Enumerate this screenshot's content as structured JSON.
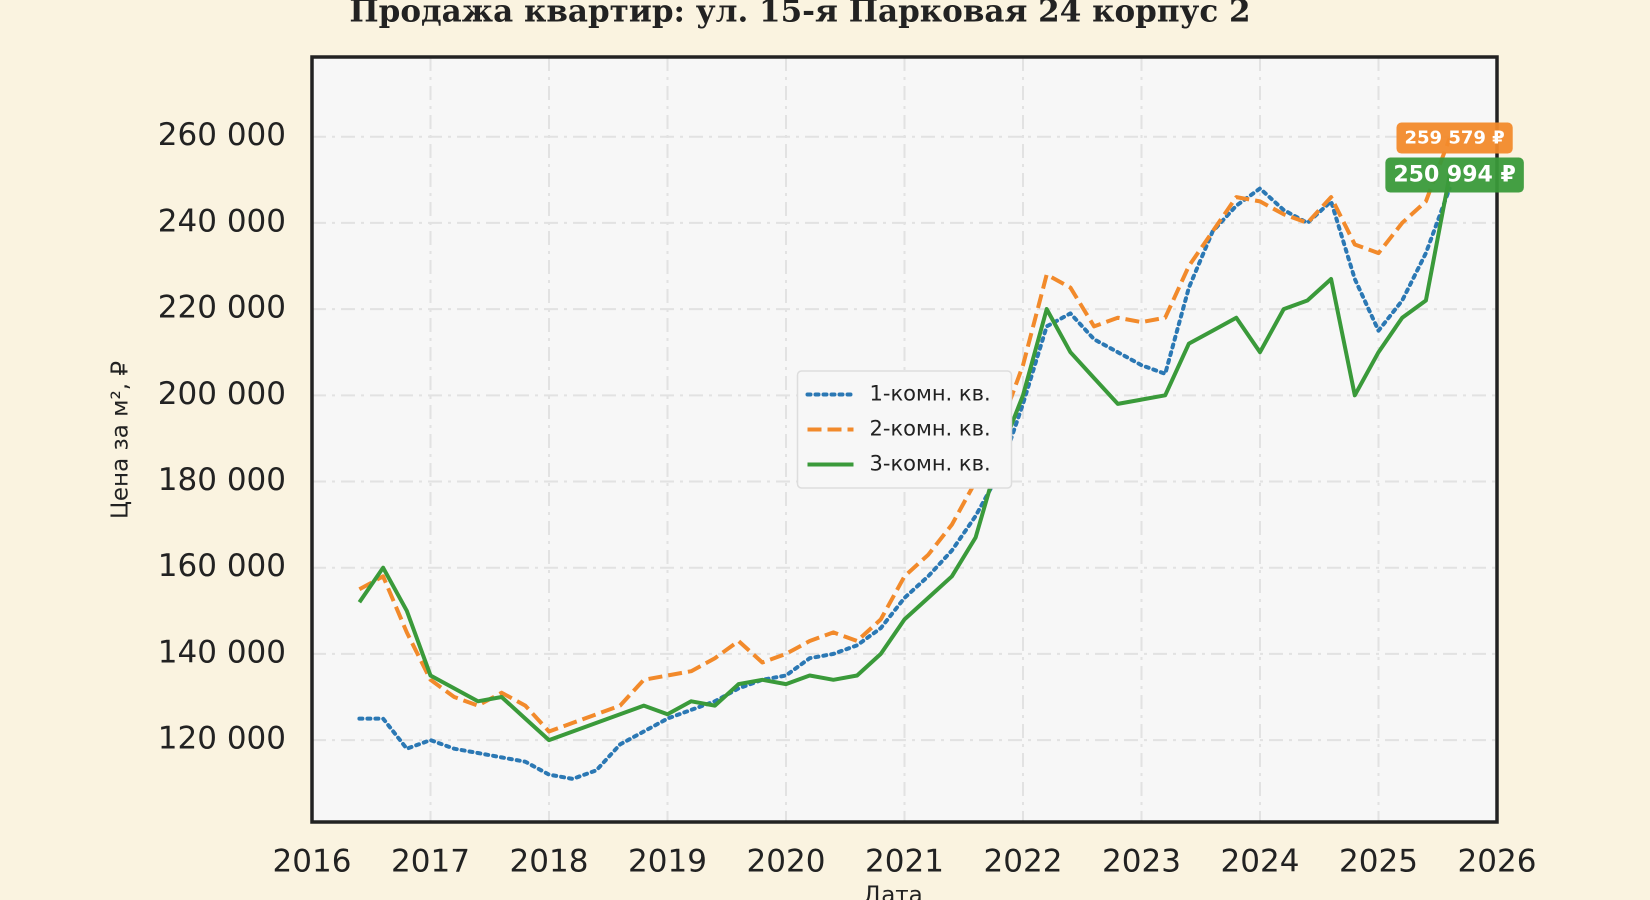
{
  "chart_data": {
    "type": "line",
    "title": "Продажа квартир: ул. 15-я Парковая 24 корпус 2",
    "xlabel": "Дата",
    "ylabel": "Цена за м², ₽",
    "x": [
      2016.4,
      2016.6,
      2016.8,
      2017.0,
      2017.2,
      2017.4,
      2017.6,
      2017.8,
      2018.0,
      2018.2,
      2018.4,
      2018.6,
      2018.8,
      2019.0,
      2019.2,
      2019.4,
      2019.6,
      2019.8,
      2020.0,
      2020.2,
      2020.4,
      2020.6,
      2020.8,
      2021.0,
      2021.2,
      2021.4,
      2021.6,
      2021.8,
      2022.0,
      2022.2,
      2022.4,
      2022.6,
      2022.8,
      2023.0,
      2023.2,
      2023.4,
      2023.6,
      2023.8,
      2024.0,
      2024.2,
      2024.4,
      2024.6,
      2024.8,
      2025.0,
      2025.2,
      2025.4,
      2025.6
    ],
    "series": [
      {
        "name": "1-комн. кв.",
        "color": "#2b78b4",
        "linestyle": "dotted",
        "values": [
          125000,
          125000,
          118000,
          120000,
          118000,
          117000,
          116000,
          115000,
          112000,
          111000,
          113000,
          119000,
          122000,
          125000,
          127000,
          129000,
          132000,
          134000,
          135000,
          139000,
          140000,
          142000,
          146000,
          153000,
          158000,
          164000,
          172000,
          182000,
          198000,
          216000,
          219000,
          213000,
          210000,
          207000,
          205000,
          225000,
          238000,
          244000,
          248000,
          243000,
          240000,
          245000,
          227000,
          215000,
          222000,
          233000,
          248000
        ]
      },
      {
        "name": "2-комн. кв.",
        "color": "#f28a2b",
        "linestyle": "dashed",
        "last_value_label": "259 579 ₽",
        "values": [
          155000,
          158000,
          145000,
          134000,
          130000,
          128000,
          131000,
          128000,
          122000,
          124000,
          126000,
          128000,
          134000,
          135000,
          136000,
          139000,
          143000,
          138000,
          140000,
          143000,
          145000,
          143000,
          148000,
          158000,
          163000,
          170000,
          180000,
          192000,
          207000,
          228000,
          225000,
          216000,
          218000,
          217000,
          218000,
          230000,
          238000,
          246000,
          245000,
          242000,
          240000,
          246000,
          235000,
          233000,
          240000,
          245000,
          259579
        ]
      },
      {
        "name": "3-комн. кв.",
        "color": "#3a9a3a",
        "linestyle": "solid",
        "last_value_label": "250 994 ₽",
        "values": [
          152000,
          160000,
          150000,
          135000,
          132000,
          129000,
          130000,
          125000,
          120000,
          122000,
          124000,
          126000,
          128000,
          126000,
          129000,
          128000,
          133000,
          134000,
          133000,
          135000,
          134000,
          135000,
          140000,
          148000,
          153000,
          158000,
          167000,
          186000,
          200000,
          220000,
          210000,
          204000,
          198000,
          199000,
          200000,
          212000,
          215000,
          218000,
          210000,
          220000,
          222000,
          227000,
          200000,
          210000,
          218000,
          222000,
          250994
        ]
      }
    ],
    "xlim": [
      2016,
      2026
    ],
    "xticks": [
      2016,
      2017,
      2018,
      2019,
      2020,
      2021,
      2022,
      2023,
      2024,
      2025,
      2026
    ],
    "ylim": [
      101000,
      278500
    ],
    "yticks": [
      {
        "value": 120000,
        "label": "120 000"
      },
      {
        "value": 140000,
        "label": "140 000"
      },
      {
        "value": 160000,
        "label": "160 000"
      },
      {
        "value": 180000,
        "label": "180 000"
      },
      {
        "value": 200000,
        "label": "200 000"
      },
      {
        "value": 220000,
        "label": "220 000"
      },
      {
        "value": 240000,
        "label": "240 000"
      },
      {
        "value": 260000,
        "label": "260 000"
      }
    ],
    "grid": true,
    "legend": "center"
  }
}
